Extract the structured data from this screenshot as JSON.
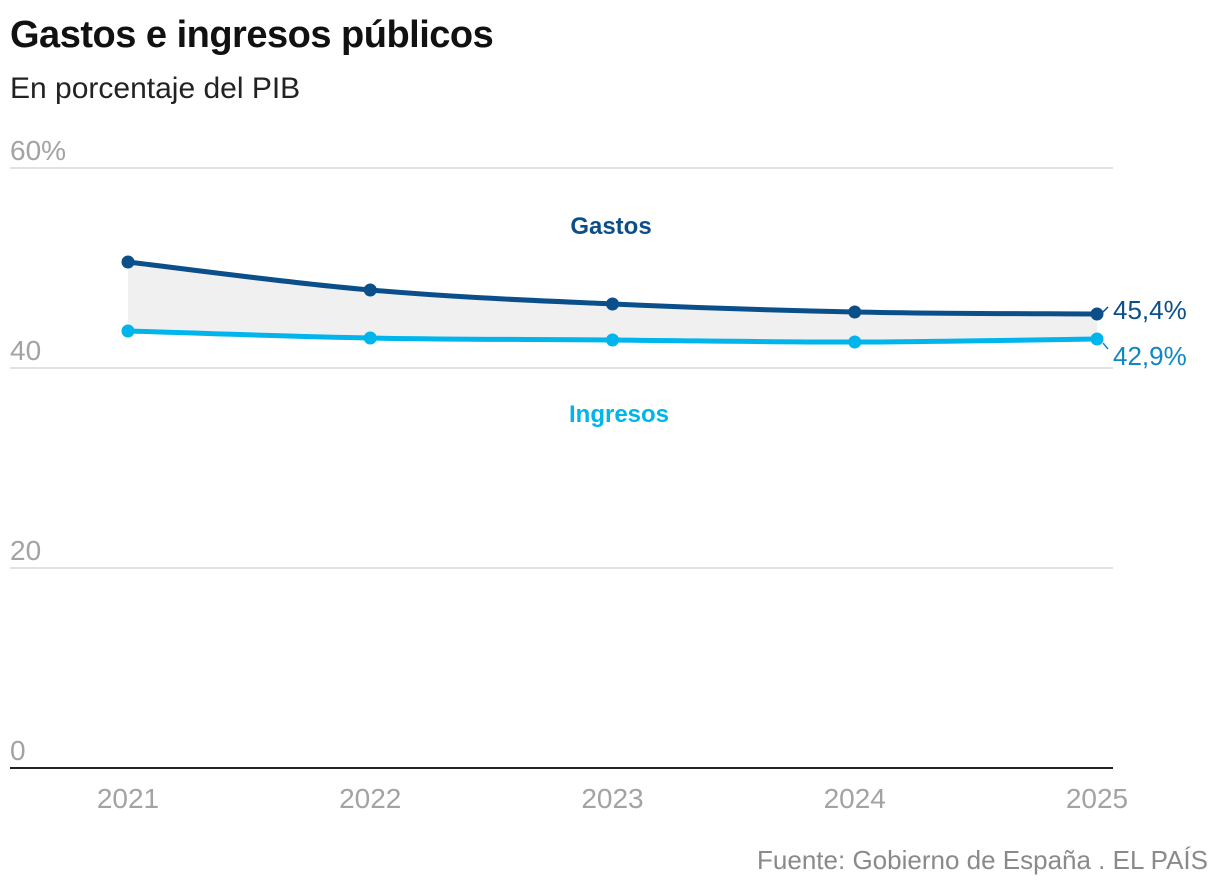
{
  "header": {
    "title": "Gastos e ingresos públicos",
    "subtitle": "En porcentaje del PIB"
  },
  "footer": {
    "source": "Fuente: Gobierno de España . EL PAÍS"
  },
  "colors": {
    "gastos": "#0b4f8a",
    "ingresos": "#00b5ec",
    "ingresos_label": "#0e87c2",
    "band_fill": "#f0f0f0",
    "grid": "#d9d9d9",
    "axis": "#222222"
  },
  "chart_data": {
    "type": "line",
    "title": "Gastos e ingresos públicos",
    "subtitle": "En porcentaje del PIB",
    "x": [
      "2021",
      "2022",
      "2023",
      "2024",
      "2025"
    ],
    "ylim": [
      0,
      60
    ],
    "yticks": [
      0,
      20,
      40,
      60
    ],
    "ytick_labels": [
      "0",
      "20",
      "40",
      "60%"
    ],
    "grid": true,
    "series": [
      {
        "key": "gastos",
        "name": "Gastos",
        "values": [
          50.6,
          47.8,
          46.4,
          45.6,
          45.4
        ],
        "end_label": "45,4%"
      },
      {
        "key": "ingresos",
        "name": "Ingresos",
        "values": [
          43.7,
          43.0,
          42.8,
          42.6,
          42.9
        ],
        "end_label": "42,9%"
      }
    ],
    "area_between_series": true
  }
}
